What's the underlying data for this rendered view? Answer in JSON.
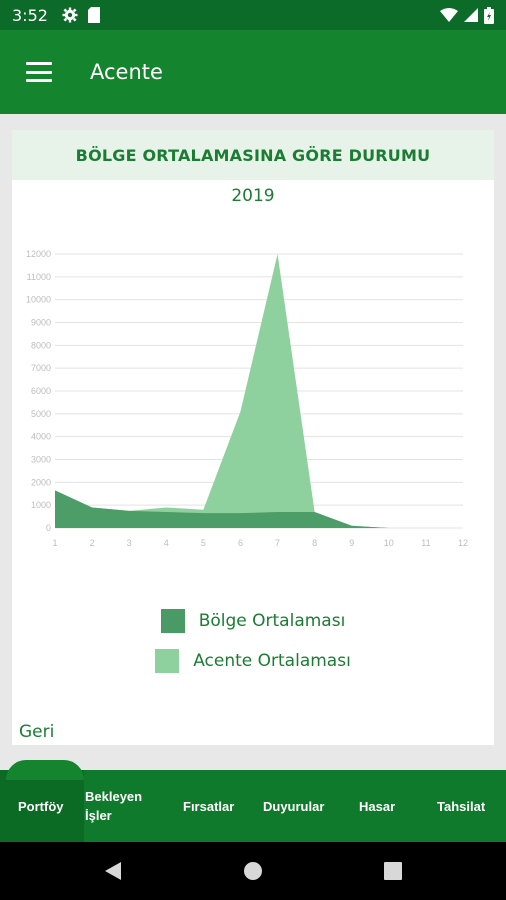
{
  "status_bar": {
    "time": "3:52",
    "icons": [
      "gear-icon",
      "sd-card-icon",
      "wifi-icon",
      "signal-icon",
      "battery-icon"
    ]
  },
  "app_bar": {
    "title": "Acente"
  },
  "card": {
    "header": "BÖLGE ORTALAMASINA GÖRE DURUMU",
    "back_label": "Geri"
  },
  "chart_data": {
    "type": "area",
    "title": "2019",
    "x": [
      1,
      2,
      3,
      4,
      5,
      6,
      7,
      8,
      9,
      10,
      11,
      12
    ],
    "y_ticks": [
      "0",
      "1000",
      "2000",
      "3000",
      "4000",
      "5000",
      "6000",
      "7000",
      "8000",
      "9000",
      "10000",
      "11000",
      "12000"
    ],
    "ylim": [
      0,
      12000
    ],
    "xlim": [
      1,
      12
    ],
    "grid": true,
    "legend_position": "bottom",
    "series": [
      {
        "name": "Bölge Ortalaması",
        "color": "#4a9a66",
        "values": [
          1650,
          900,
          750,
          700,
          650,
          650,
          700,
          700,
          100,
          0,
          0,
          0
        ]
      },
      {
        "name": "Acente Ortalaması",
        "color": "#8fd19e",
        "values": [
          1650,
          900,
          750,
          900,
          800,
          5100,
          12000,
          700,
          100,
          0,
          0,
          0
        ]
      }
    ]
  },
  "bottom_nav": {
    "items": [
      {
        "label": "Portföy",
        "active": true
      },
      {
        "label": "Bekleyen\nİşler",
        "active": false
      },
      {
        "label": "Fırsatlar",
        "active": false
      },
      {
        "label": "Duyurular",
        "active": false
      },
      {
        "label": "Hasar",
        "active": false
      },
      {
        "label": "Tahsilat",
        "active": false
      }
    ]
  },
  "colors": {
    "status_bar": "#0d6b2a",
    "app_bar": "#14842f",
    "accent_text": "#1b7d33",
    "header_bg": "#e7f2e9",
    "bottom_nav": "#0f7a2b"
  }
}
